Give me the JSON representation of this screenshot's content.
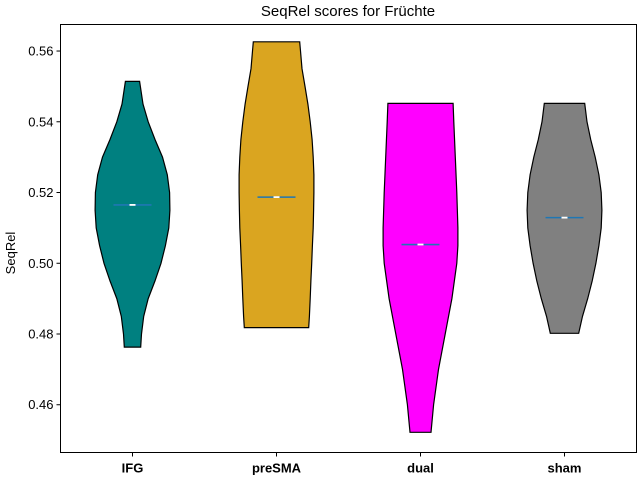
{
  "chart_data": {
    "type": "violin",
    "title": "SeqRel scores for Früchte",
    "xlabel": "",
    "ylabel": "SeqRel",
    "ylim": [
      0.4465,
      0.5675
    ],
    "yticks": [
      0.46,
      0.48,
      0.5,
      0.52,
      0.54,
      0.56
    ],
    "ytick_labels": [
      "0.46",
      "0.48",
      "0.50",
      "0.52",
      "0.54",
      "0.56"
    ],
    "categories": [
      "IFG",
      "preSMA",
      "dual",
      "sham"
    ],
    "grid": false,
    "series": [
      {
        "name": "IFG",
        "color": "#008080",
        "min": 0.4763,
        "max": 0.5514,
        "median": 0.5165,
        "mean": 0.5165,
        "profile": [
          [
            0.4763,
            0.22
          ],
          [
            0.48,
            0.24
          ],
          [
            0.485,
            0.3
          ],
          [
            0.49,
            0.42
          ],
          [
            0.495,
            0.6
          ],
          [
            0.5,
            0.76
          ],
          [
            0.505,
            0.88
          ],
          [
            0.51,
            0.97
          ],
          [
            0.515,
            1.0
          ],
          [
            0.52,
            0.99
          ],
          [
            0.525,
            0.93
          ],
          [
            0.53,
            0.8
          ],
          [
            0.535,
            0.6
          ],
          [
            0.54,
            0.42
          ],
          [
            0.545,
            0.28
          ],
          [
            0.5514,
            0.19
          ]
        ]
      },
      {
        "name": "preSMA",
        "color": "#DAA520",
        "min": 0.4818,
        "max": 0.5626,
        "median": 0.5187,
        "mean": 0.5187,
        "profile": [
          [
            0.4818,
            0.86
          ],
          [
            0.485,
            0.88
          ],
          [
            0.49,
            0.9
          ],
          [
            0.495,
            0.92
          ],
          [
            0.5,
            0.94
          ],
          [
            0.505,
            0.96
          ],
          [
            0.51,
            0.98
          ],
          [
            0.515,
            0.99
          ],
          [
            0.52,
            1.0
          ],
          [
            0.525,
            1.0
          ],
          [
            0.53,
            0.98
          ],
          [
            0.535,
            0.95
          ],
          [
            0.54,
            0.9
          ],
          [
            0.545,
            0.84
          ],
          [
            0.55,
            0.76
          ],
          [
            0.555,
            0.68
          ],
          [
            0.56,
            0.64
          ],
          [
            0.5626,
            0.62
          ]
        ]
      },
      {
        "name": "dual",
        "color": "#FF00FF",
        "min": 0.4522,
        "max": 0.5452,
        "median": 0.5053,
        "mean": 0.5053,
        "profile": [
          [
            0.4522,
            0.28
          ],
          [
            0.46,
            0.35
          ],
          [
            0.47,
            0.48
          ],
          [
            0.48,
            0.66
          ],
          [
            0.49,
            0.84
          ],
          [
            0.5,
            0.97
          ],
          [
            0.505,
            1.0
          ],
          [
            0.51,
            1.0
          ],
          [
            0.52,
            0.97
          ],
          [
            0.53,
            0.93
          ],
          [
            0.54,
            0.89
          ],
          [
            0.5452,
            0.87
          ]
        ]
      },
      {
        "name": "sham",
        "color": "#808080",
        "min": 0.4802,
        "max": 0.5452,
        "median": 0.5129,
        "mean": 0.5129,
        "profile": [
          [
            0.4802,
            0.38
          ],
          [
            0.485,
            0.48
          ],
          [
            0.49,
            0.62
          ],
          [
            0.495,
            0.74
          ],
          [
            0.5,
            0.84
          ],
          [
            0.505,
            0.92
          ],
          [
            0.51,
            0.98
          ],
          [
            0.515,
            1.0
          ],
          [
            0.52,
            0.98
          ],
          [
            0.525,
            0.92
          ],
          [
            0.53,
            0.82
          ],
          [
            0.535,
            0.7
          ],
          [
            0.54,
            0.6
          ],
          [
            0.5452,
            0.54
          ]
        ]
      }
    ]
  }
}
